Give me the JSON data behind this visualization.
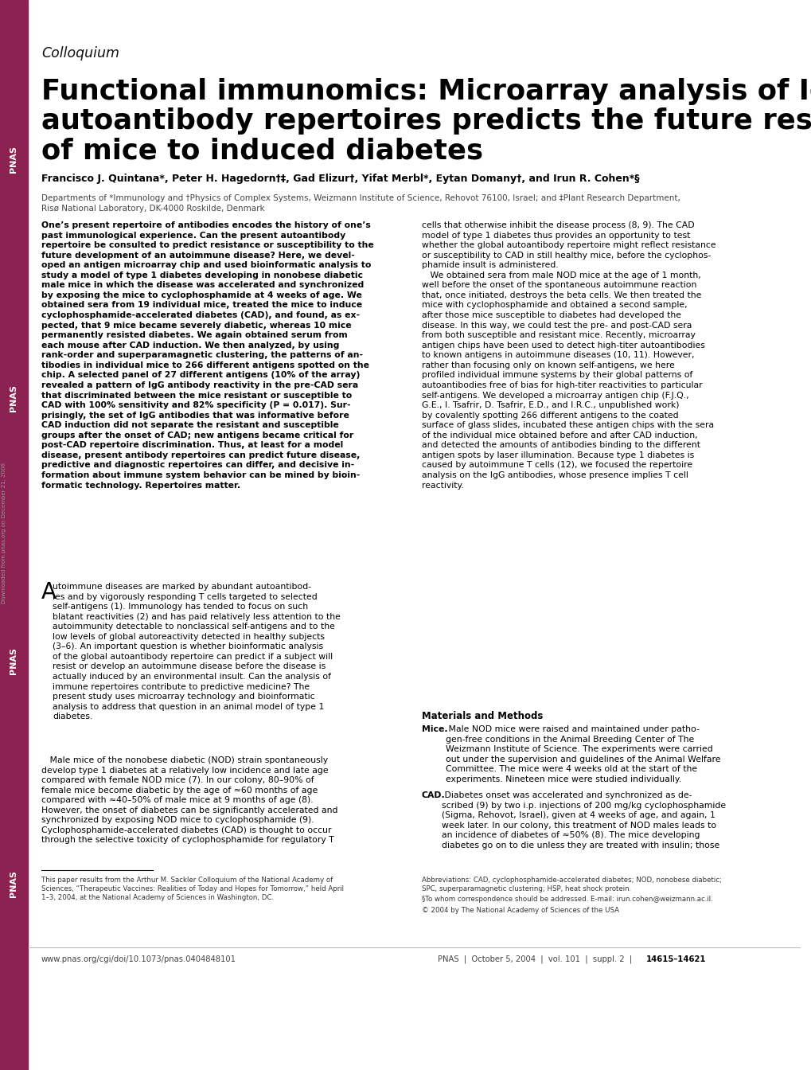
{
  "bg_color": "#ffffff",
  "sidebar_color": "#8B2252",
  "colloquium_text": "Colloquium",
  "title_line1": "Functional immunomics: Microarray analysis of IgG",
  "title_line2": "autoantibody repertoires predicts the future response",
  "title_line3": "of mice to induced diabetes",
  "authors": "Francisco J. Quintana*, Peter H. Hagedorn†‡, Gad Elizur†, Yifat Merbl*, Eytan Domany†, and Irun R. Cohen*§",
  "affil1": "Departments of *Immunology and †Physics of Complex Systems, Weizmann Institute of Science, Rehovot 76100, Israel; and ‡Plant Research Department,",
  "affil2": "Risø National Laboratory, DK-4000 Roskilde, Denmark",
  "abstract_left": "One’s present repertoire of antibodies encodes the history of one’s\npast immunological experience. Can the present autoantibody\nrepertoire be consulted to predict resistance or susceptibility to the\nfuture development of an autoimmune disease? Here, we devel-\noped an antigen microarray chip and used bioinformatic analysis to\nstudy a model of type 1 diabetes developing in nonobese diabetic\nmale mice in which the disease was accelerated and synchronized\nby exposing the mice to cyclophosphamide at 4 weeks of age. We\nobtained sera from 19 individual mice, treated the mice to induce\ncyclophosphamide-accelerated diabetes (CAD), and found, as ex-\npected, that 9 mice became severely diabetic, whereas 10 mice\npermanently resisted diabetes. We again obtained serum from\neach mouse after CAD induction. We then analyzed, by using\nrank-order and superparamagnetic clustering, the patterns of an-\ntibodies in individual mice to 266 different antigens spotted on the\nchip. A selected panel of 27 different antigens (10% of the array)\nrevealed a pattern of IgG antibody reactivity in the pre-CAD sera\nthat discriminated between the mice resistant or susceptible to\nCAD with 100% sensitivity and 82% specificity (P = 0.017). Sur-\nprisingly, the set of IgG antibodies that was informative before\nCAD induction did not separate the resistant and susceptible\ngroups after the onset of CAD; new antigens became critical for\npost-CAD repertoire discrimination. Thus, at least for a model\ndisease, present antibody repertoires can predict future disease,\npredictive and diagnostic repertoires can differ, and decisive in-\nformation about immune system behavior can be mined by bioin-\nformatic technology. Repertoires matter.",
  "abstract_right": "cells that otherwise inhibit the disease process (8, 9). The CAD\nmodel of type 1 diabetes thus provides an opportunity to test\nwhether the global autoantibody repertoire might reflect resistance\nor susceptibility to CAD in still healthy mice, before the cyclophos-\nphamide insult is administered.\n   We obtained sera from male NOD mice at the age of 1 month,\nwell before the onset of the spontaneous autoimmune reaction\nthat, once initiated, destroys the beta cells. We then treated the\nmice with cyclophosphamide and obtained a second sample,\nafter those mice susceptible to diabetes had developed the\ndisease. In this way, we could test the pre- and post-CAD sera\nfrom both susceptible and resistant mice. Recently, microarray\nantigen chips have been used to detect high-titer autoantibodies\nto known antigens in autoimmune diseases (10, 11). However,\nrather than focusing only on known self-antigens, we here\nprofiled individual immune systems by their global patterns of\nautoantibodies free of bias for high-titer reactivities to particular\nself-antigens. We developed a microarray antigen chip (F.J.Q.,\nG.E., I. Tsafrir, D. Tsafrir, E.D., and I.R.C., unpublished work)\nby covalently spotting 266 different antigens to the coated\nsurface of glass slides, incubated these antigen chips with the sera\nof the individual mice obtained before and after CAD induction,\nand detected the amounts of antibodies binding to the different\nantigen spots by laser illumination. Because type 1 diabetes is\ncaused by autoimmune T cells (12), we focused the repertoire\nanalysis on the IgG antibodies, whose presence implies T cell\nreactivity.",
  "body_left_p1": "Autoimmune diseases are marked by abundant autoantibod-\nies and by vigorously responding T cells targeted to selected\nself-antigens (1). Immunology has tended to focus on such\nblatant reactivities (2) and has paid relatively less attention to the\nautoimmunity detectable to nonclassical self-antigens and to the\nlow levels of global autoreactivity detected in healthy subjects\n(3–6). An important question is whether bioinformatic analysis\nof the global autoantibody repertoire can predict if a subject will\nresist or develop an autoimmune disease before the disease is\nactually induced by an environmental insult. Can the analysis of\nimmune repertoires contribute to predictive medicine? The\npresent study uses microarray technology and bioinformatic\nanalysis to address that question in an animal model of type 1\ndiabetes.",
  "body_left_p2": "   Male mice of the nonobese diabetic (NOD) strain spontaneously\ndevelop type 1 diabetes at a relatively low incidence and late age\ncompared with female NOD mice (7). In our colony, 80–90% of\nfemale mice become diabetic by the age of ≈60 months of age\ncompared with ≈40–50% of male mice at 9 months of age (8).\nHowever, the onset of diabetes can be significantly accelerated and\nsynchronized by exposing NOD mice to cyclophosphamide (9).\nCyclophosphamide-accelerated diabetes (CAD) is thought to occur\nthrough the selective toxicity of cyclophosphamide for regulatory T",
  "mat_header": "Materials and Methods",
  "mat_mice_bold": "Mice.",
  "mat_mice_text": " Male NOD mice were raised and maintained under patho-\ngen-free conditions in the Animal Breeding Center of The\nWeizmann Institute of Science. The experiments were carried\nout under the supervision and guidelines of the Animal Welfare\nCommittee. The mice were 4 weeks old at the start of the\nexperiments. Nineteen mice were studied individually.",
  "mat_cad_bold": "CAD.",
  "mat_cad_text": " Diabetes onset was accelerated and synchronized as de-\nscribed (9) by two i.p. injections of 200 mg/kg cyclophosphamide\n(Sigma, Rehovot, Israel), given at 4 weeks of age, and again, 1\nweek later. In our colony, this treatment of NOD males leads to\nan incidence of diabetes of ≈50% (8). The mice developing\ndiabetes go on to die unless they are treated with insulin; those",
  "footnote1": "This paper results from the Arthur M. Sackler Colloquium of the National Academy of\nSciences, “Therapeutic Vaccines: Realities of Today and Hopes for Tomorrow,” held April\n1–3, 2004, at the National Academy of Sciences in Washington, DC.",
  "footnote2": "Abbreviations: CAD, cyclophosphamide-accelerated diabetes; NOD, nonobese diabetic;\nSPC, superparamagnetic clustering; HSP, heat shock protein.",
  "footnote3": "§To whom correspondence should be addressed. E-mail: irun.cohen@weizmann.ac.il.",
  "footnote4": "© 2004 by The National Academy of Sciences of the USA",
  "footer_left": "www.pnas.org/cgi/doi/10.1073/pnas.0404848101",
  "footer_center": "PNAS  |  October 5, 2004  |  vol. 101  |  suppl. 2  |  ",
  "footer_page": "14615–14621",
  "pnas_labels": [
    "PNAS",
    "PNAS",
    "PNAS"
  ]
}
